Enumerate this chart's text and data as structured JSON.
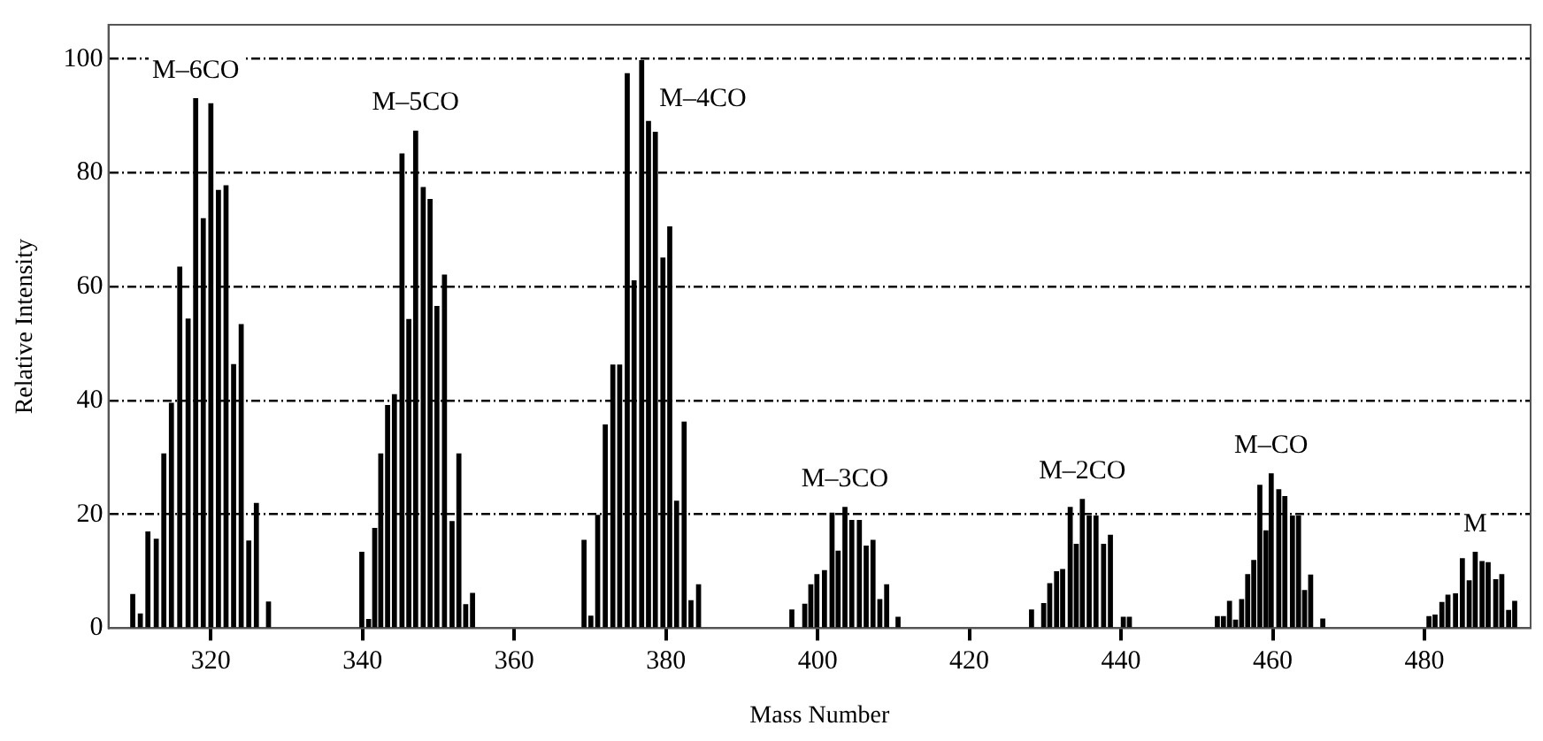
{
  "chart_data": {
    "type": "bar",
    "xlabel": "Mass Number",
    "ylabel": "Relative Intensity",
    "x": [
      309.7,
      310.7,
      311.7,
      312.8,
      313.8,
      314.8,
      315.9,
      317,
      318,
      319,
      320,
      321,
      322,
      323,
      324,
      325,
      326,
      327.6,
      339.9,
      340.8,
      341.6,
      342.4,
      343.3,
      344.2,
      345.2,
      346.1,
      347,
      348,
      348.9,
      349.8,
      350.8,
      351.8,
      352.7,
      353.6,
      354.5,
      369.2,
      370.1,
      371,
      372,
      373,
      373.9,
      374.9,
      375.8,
      376.8,
      377.7,
      378.6,
      379.6,
      380.5,
      381.4,
      382.4,
      383.3,
      384.3,
      396.6,
      398.3,
      399.1,
      399.9,
      400.9,
      401.9,
      402.7,
      403.6,
      404.5,
      405.5,
      406.4,
      407.3,
      408.2,
      409.1,
      410.6,
      428.2,
      429.8,
      430.6,
      431.5,
      432.3,
      433.3,
      434.1,
      434.9,
      435.8,
      436.7,
      437.7,
      438.6,
      440.3,
      441.1,
      452.7,
      453.5,
      454.3,
      455.1,
      455.9,
      456.7,
      457.5,
      458.3,
      459.1,
      459.8,
      460.8,
      461.6,
      462.6,
      463.4,
      464.2,
      465,
      466.6,
      480.6,
      481.4,
      482.3,
      483.1,
      484.1,
      485,
      485.9,
      486.7,
      487.6,
      488.4,
      489.4,
      490.2,
      491.1,
      491.9
    ],
    "series": [
      {
        "color": "#000000",
        "values": [
          5.9,
          2.5,
          16.9,
          15.6,
          30.6,
          39.5,
          63.4,
          54.3,
          93,
          71.9,
          92.1,
          76.9,
          77.7,
          46.3,
          53.3,
          15.3,
          21.9,
          4.6,
          13.3,
          1.5,
          17.5,
          30.6,
          39.1,
          41,
          83.3,
          54.2,
          87.3,
          77.4,
          75.3,
          56.5,
          62,
          18.7,
          30.6,
          4.1,
          6.1,
          15.4,
          2.1,
          19.8,
          35.7,
          46.2,
          46.2,
          97.4,
          61,
          99.7,
          89,
          87.1,
          65,
          70.5,
          22.3,
          36.2,
          4.8,
          7.6,
          3.2,
          4.2,
          7.6,
          9.4,
          10.1,
          20.2,
          13.5,
          21.2,
          18.9,
          18.9,
          14.4,
          15.4,
          5,
          7.6,
          1.9,
          3.2,
          4.3,
          7.8,
          9.9,
          10.3,
          21.2,
          14.7,
          22.6,
          19.7,
          19.7,
          14.7,
          16.3,
          1.9,
          1.9,
          2,
          2,
          4.7,
          1.4,
          5,
          9.4,
          11.9,
          25.1,
          17.1,
          27.1,
          24.3,
          23.1,
          19.7,
          19.7,
          6.6,
          9.3,
          1.6,
          2,
          2.3,
          4.5,
          5.8,
          6,
          12.2,
          8.3,
          13.3,
          11.7,
          11.5,
          8.5,
          9.4,
          3.1,
          4.7
        ]
      }
    ],
    "xlim": [
      306.5,
      494
    ],
    "xticks": [
      320,
      340,
      360,
      380,
      400,
      420,
      440,
      460,
      480
    ],
    "ylim": [
      0,
      106
    ],
    "yticks": [
      0,
      20,
      40,
      60,
      80,
      100
    ],
    "grid": "y",
    "legend": false,
    "annotations": [
      "M–6CO",
      "M–5CO",
      "M–4CO",
      "M–3CO",
      "M–2CO",
      "M–CO",
      "M"
    ]
  }
}
